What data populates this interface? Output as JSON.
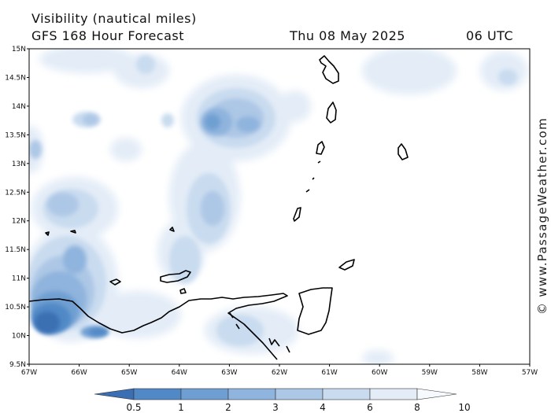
{
  "header": {
    "line1": "Visibility (nautical miles)",
    "line2": "GFS 168 Hour Forecast",
    "date": "Thu 08 May 2025",
    "time": "06 UTC"
  },
  "watermark": "© www.PassageWeather.com",
  "map": {
    "lat_labels": [
      "15N",
      "14.5N",
      "14N",
      "13.5N",
      "13N",
      "12.5N",
      "12N",
      "11.5N",
      "11N",
      "10.5N",
      "10N",
      "9.5N"
    ],
    "lon_labels": [
      "67W",
      "66W",
      "65W",
      "64W",
      "63W",
      "62W",
      "61W",
      "60W",
      "59W",
      "58W",
      "57W"
    ],
    "extent": {
      "lon": [
        -67,
        -57
      ],
      "lat": [
        9.5,
        15
      ]
    },
    "land_color": "#000000"
  },
  "colorbar": {
    "labels": [
      "0.5",
      "1",
      "2",
      "3",
      "4",
      "6",
      "8",
      "10"
    ],
    "colors": [
      "#3b6fb3",
      "#5189c6",
      "#6f9fd2",
      "#8fb4dd",
      "#adc7e6",
      "#c9dbef",
      "#e3ecf7",
      "#f6f9fd"
    ]
  }
}
